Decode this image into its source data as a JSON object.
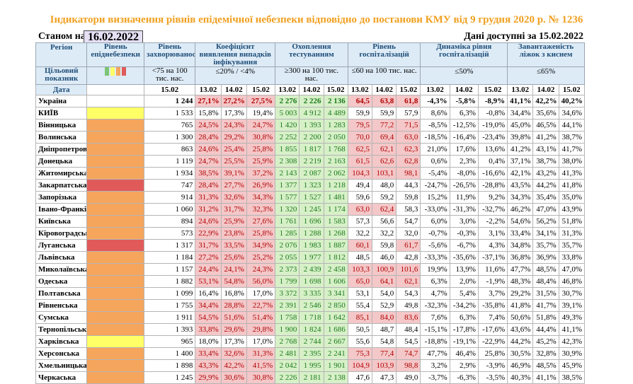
{
  "title": "Індикатори визначення рівнів епідемічної небезпеки відповідно до постанови КМУ від 9 грудня 2020 р. № 1236",
  "status_label": "Станом на",
  "status_date": "16.02.2022",
  "available": "Дані доступні за 15.02.2022",
  "headers": {
    "region": "Регіон",
    "indicator": "Цільовий показник",
    "date": "Дата",
    "level": "Рівень епіднебезпеки",
    "incidence": "Рівень захворюваності",
    "incidence_target": "<75 на 100 тис. нас.",
    "detection": "Коефіцієнт виявлення випадків інфікування",
    "detection_target": "≤20% / <4%",
    "testing": "Охоплення тестуванням",
    "testing_target": "≥300 на 100 тис. нас.",
    "hosp": "Рівень госпіталізацій",
    "hosp_target": "≤60 на 100 тис. нас.",
    "dyn": "Динаміка рівня госпіталізацій",
    "dyn_target": "≤50%",
    "beds": "Завантаженість ліжок з киснем",
    "beds_target": "≤65%",
    "d1": "15.02",
    "d2": "13.02",
    "d3": "14.02",
    "d4": "15.02"
  },
  "legend_colors": [
    "#7cc576",
    "#ffff66",
    "#f6a55c",
    "#e05a5a"
  ],
  "rows": [
    {
      "name": "Україна",
      "level": "",
      "inc": "1 244",
      "det": [
        "27,1%",
        "27,2%",
        "27,5%"
      ],
      "tst": [
        "2 276",
        "2 226",
        "2 136"
      ],
      "hsp": [
        "64,5",
        "63,8",
        "61,8"
      ],
      "dyn": [
        "-4,3%",
        "-5,8%",
        "-8,9%"
      ],
      "bed": [
        "41,1%",
        "42,2%",
        "40,2%"
      ]
    },
    {
      "name": "КИЇВ",
      "level": "y",
      "inc": "1 533",
      "det": [
        "15,8%",
        "17,3%",
        "19,4%"
      ],
      "tst": [
        "5 003",
        "4 912",
        "4 489"
      ],
      "hsp": [
        "59,9",
        "59,9",
        "57,9"
      ],
      "dyn": [
        "8,6%",
        "6,3%",
        "-0,8%"
      ],
      "bed": [
        "34,4%",
        "35,6%",
        "34,6%"
      ]
    },
    {
      "name": "Вінницька",
      "level": "o",
      "inc": "765",
      "det": [
        "24,5%",
        "24,3%",
        "24,7%"
      ],
      "tst": [
        "1 420",
        "1 393",
        "1 283"
      ],
      "hsp": [
        "79,5",
        "77,2",
        "71,5"
      ],
      "dyn": [
        "-8,5%",
        "-12,5%",
        "-19,0%"
      ],
      "bed": [
        "45,0%",
        "46,5%",
        "44,1%"
      ]
    },
    {
      "name": "Волинська",
      "level": "o",
      "inc": "1 300",
      "det": [
        "28,4%",
        "29,2%",
        "30,8%"
      ],
      "tst": [
        "2 252",
        "2 200",
        "2 050"
      ],
      "hsp": [
        "70,0",
        "69,4",
        "63,0"
      ],
      "dyn": [
        "-18,5%",
        "-16,4%",
        "-23,4%"
      ],
      "bed": [
        "39,8%",
        "41,2%",
        "38,7%"
      ]
    },
    {
      "name": "Дніпропетровська",
      "level": "o",
      "inc": "863",
      "det": [
        "24,6%",
        "25,4%",
        "25,8%"
      ],
      "tst": [
        "1 855",
        "1 817",
        "1 768"
      ],
      "hsp": [
        "62,5",
        "62,1",
        "62,3"
      ],
      "dyn": [
        "21,0%",
        "17,6%",
        "13,6%"
      ],
      "bed": [
        "41,2%",
        "43,1%",
        "41,7%"
      ]
    },
    {
      "name": "Донецька",
      "level": "o",
      "inc": "1 119",
      "det": [
        "24,7%",
        "25,5%",
        "25,9%"
      ],
      "tst": [
        "2 308",
        "2 219",
        "2 163"
      ],
      "hsp": [
        "61,5",
        "62,6",
        "62,8"
      ],
      "dyn": [
        "0,6%",
        "2,3%",
        "0,4%"
      ],
      "bed": [
        "37,1%",
        "38,7%",
        "38,0%"
      ]
    },
    {
      "name": "Житомирська",
      "level": "o",
      "inc": "1 934",
      "det": [
        "38,5%",
        "39,1%",
        "37,2%"
      ],
      "tst": [
        "2 143",
        "2 087",
        "2 062"
      ],
      "hsp": [
        "104,3",
        "103,1",
        "98,1"
      ],
      "dyn": [
        "-5,4%",
        "-8,0%",
        "-16,6%"
      ],
      "bed": [
        "42,1%",
        "43,2%",
        "41,3%"
      ]
    },
    {
      "name": "Закарпатська",
      "level": "r",
      "inc": "747",
      "det": [
        "28,4%",
        "27,7%",
        "26,9%"
      ],
      "tst": [
        "1 377",
        "1 323",
        "1 218"
      ],
      "hsp": [
        "49,4",
        "48,0",
        "44,3"
      ],
      "dyn": [
        "-24,7%",
        "-26,5%",
        "-28,8%"
      ],
      "bed": [
        "43,5%",
        "44,2%",
        "41,8%"
      ]
    },
    {
      "name": "Запорізька",
      "level": "o",
      "inc": "914",
      "det": [
        "31,3%",
        "32,6%",
        "34,3%"
      ],
      "tst": [
        "1 577",
        "1 527",
        "1 481"
      ],
      "hsp": [
        "59,6",
        "59,2",
        "59,8"
      ],
      "dyn": [
        "15,2%",
        "11,9%",
        "9,2%"
      ],
      "bed": [
        "34,3%",
        "35,4%",
        "35,0%"
      ]
    },
    {
      "name": "Івано-Франківська",
      "level": "o",
      "inc": "1 060",
      "det": [
        "31,2%",
        "31,7%",
        "32,3%"
      ],
      "tst": [
        "1 320",
        "1 245",
        "1 174"
      ],
      "hsp": [
        "63,0",
        "62,4",
        "58,3"
      ],
      "dyn": [
        "-33,0%",
        "-31,3%",
        "-32,7%"
      ],
      "bed": [
        "46,2%",
        "47,0%",
        "43,9%"
      ]
    },
    {
      "name": "Київська",
      "level": "o",
      "inc": "894",
      "det": [
        "24,6%",
        "25,9%",
        "27,6%"
      ],
      "tst": [
        "1 761",
        "1 696",
        "1 583"
      ],
      "hsp": [
        "57,3",
        "56,6",
        "54,7"
      ],
      "dyn": [
        "6,0%",
        "3,0%",
        "-2,2%"
      ],
      "bed": [
        "54,6%",
        "56,2%",
        "51,8%"
      ]
    },
    {
      "name": "Кіровоградська",
      "level": "o",
      "inc": "573",
      "det": [
        "22,9%",
        "23,8%",
        "25,8%"
      ],
      "tst": [
        "1 285",
        "1 288",
        "1 268"
      ],
      "hsp": [
        "32,2",
        "32,2",
        "32,0"
      ],
      "dyn": [
        "-0,7%",
        "-0,3%",
        "3,1%"
      ],
      "bed": [
        "33,4%",
        "34,1%",
        "31,3%"
      ]
    },
    {
      "name": "Луганська",
      "level": "r",
      "inc": "1 317",
      "det": [
        "31,7%",
        "33,5%",
        "34,9%"
      ],
      "tst": [
        "2 076",
        "1 983",
        "1 887"
      ],
      "hsp": [
        "60,1",
        "59,8",
        "61,7"
      ],
      "dyn": [
        "-5,6%",
        "-6,7%",
        "4,3%"
      ],
      "bed": [
        "34,8%",
        "35,7%",
        "35,7%"
      ]
    },
    {
      "name": "Львівська",
      "level": "o",
      "inc": "1 184",
      "det": [
        "27,2%",
        "25,6%",
        "25,2%"
      ],
      "tst": [
        "2 055",
        "1 977",
        "1 812"
      ],
      "hsp": [
        "48,5",
        "46,0",
        "42,8"
      ],
      "dyn": [
        "-33,3%",
        "-35,6%",
        "-37,1%"
      ],
      "bed": [
        "36,8%",
        "36,9%",
        "33,8%"
      ]
    },
    {
      "name": "Миколаївська",
      "level": "o",
      "inc": "1 157",
      "det": [
        "24,4%",
        "24,1%",
        "24,3%"
      ],
      "tst": [
        "2 373",
        "2 439",
        "2 458"
      ],
      "hsp": [
        "103,3",
        "100,9",
        "101,6"
      ],
      "dyn": [
        "19,9%",
        "13,9%",
        "11,6%"
      ],
      "bed": [
        "47,7%",
        "48,5%",
        "47,0%"
      ]
    },
    {
      "name": "Одеська",
      "level": "o",
      "inc": "1 882",
      "det": [
        "53,1%",
        "54,8%",
        "56,0%"
      ],
      "tst": [
        "1 799",
        "1 698",
        "1 606"
      ],
      "hsp": [
        "65,0",
        "64,1",
        "62,1"
      ],
      "dyn": [
        "6,3%",
        "2,0%",
        "-1,9%"
      ],
      "bed": [
        "48,3%",
        "48,4%",
        "46,8%"
      ]
    },
    {
      "name": "Полтавська",
      "level": "o",
      "inc": "1 099",
      "det": [
        "16,4%",
        "16,8%",
        "17,0%"
      ],
      "tst": [
        "3 372",
        "3 335",
        "3 341"
      ],
      "hsp": [
        "53,1",
        "54,0",
        "54,3"
      ],
      "dyn": [
        "4,7%",
        "5,4%",
        "3,7%"
      ],
      "bed": [
        "29,2%",
        "31,5%",
        "30,7%"
      ]
    },
    {
      "name": "Рівненська",
      "level": "o",
      "inc": "1 755",
      "det": [
        "34,4%",
        "28,8%",
        "22,7%"
      ],
      "tst": [
        "2 391",
        "2 546",
        "2 850"
      ],
      "hsp": [
        "55,4",
        "52,9",
        "49,8"
      ],
      "dyn": [
        "-32,3%",
        "-34,2%",
        "-35,8%"
      ],
      "bed": [
        "41,8%",
        "41,7%",
        "39,1%"
      ]
    },
    {
      "name": "Сумська",
      "level": "o",
      "inc": "1 911",
      "det": [
        "54,5%",
        "51,6%",
        "51,4%"
      ],
      "tst": [
        "1 758",
        "1 718",
        "1 642"
      ],
      "hsp": [
        "85,1",
        "84,0",
        "83,6"
      ],
      "dyn": [
        "7,6%",
        "6,3%",
        "7,4%"
      ],
      "bed": [
        "50,6%",
        "51,8%",
        "49,3%"
      ]
    },
    {
      "name": "Тернопільська",
      "level": "o",
      "inc": "1 393",
      "det": [
        "33,8%",
        "29,6%",
        "29,8%"
      ],
      "tst": [
        "1 900",
        "1 824",
        "1 686"
      ],
      "hsp": [
        "50,5",
        "48,7",
        "48,4"
      ],
      "dyn": [
        "-15,1%",
        "-17,8%",
        "-17,6%"
      ],
      "bed": [
        "43,6%",
        "44,4%",
        "41,1%"
      ]
    },
    {
      "name": "Харківська",
      "level": "y",
      "inc": "965",
      "det": [
        "18,0%",
        "17,3%",
        "17,0%"
      ],
      "tst": [
        "2 768",
        "2 744",
        "2 667"
      ],
      "hsp": [
        "55,6",
        "54,8",
        "54,5"
      ],
      "dyn": [
        "-18,8%",
        "-19,1%",
        "-22,9%"
      ],
      "bed": [
        "44,2%",
        "45,2%",
        "42,3%"
      ]
    },
    {
      "name": "Херсонська",
      "level": "o",
      "inc": "1 400",
      "det": [
        "33,4%",
        "32,6%",
        "31,3%"
      ],
      "tst": [
        "2 481",
        "2 395",
        "2 241"
      ],
      "hsp": [
        "75,3",
        "77,4",
        "74,7"
      ],
      "dyn": [
        "47,7%",
        "46,4%",
        "25,8%"
      ],
      "bed": [
        "30,5%",
        "32,8%",
        "30,9%"
      ]
    },
    {
      "name": "Хмельницька",
      "level": "o",
      "inc": "1 898",
      "det": [
        "43,3%",
        "42,2%",
        "41,5%"
      ],
      "tst": [
        "2 042",
        "1 995",
        "1 901"
      ],
      "hsp": [
        "104,9",
        "103,9",
        "98,8"
      ],
      "dyn": [
        "3,2%",
        "2,9%",
        "-3,9%"
      ],
      "bed": [
        "46,9%",
        "48,5%",
        "45,9%"
      ]
    },
    {
      "name": "Черкаська",
      "level": "o",
      "inc": "1 245",
      "det": [
        "29,9%",
        "30,6%",
        "30,8%"
      ],
      "tst": [
        "2 226",
        "2 181",
        "2 138"
      ],
      "hsp": [
        "47,6",
        "47,3",
        "49,0"
      ],
      "dyn": [
        "-3,7%",
        "-6,3%",
        "-3,5%"
      ],
      "bed": [
        "40,3%",
        "41,1%",
        "38,5%"
      ]
    }
  ]
}
